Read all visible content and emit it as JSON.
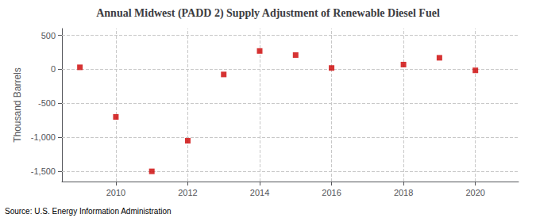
{
  "chart_data": {
    "type": "scatter",
    "title": "Annual Midwest (PADD 2) Supply Adjustment of Renewable Diesel Fuel",
    "ylabel": "Thousand Barrels",
    "annotations": [
      "Source: U.S. Energy Information Administration"
    ],
    "x": [
      2009,
      2010,
      2011,
      2012,
      2013,
      2014,
      2015,
      2016,
      2018,
      2019,
      2020
    ],
    "values": [
      30,
      -700,
      -1500,
      -1050,
      -75,
      270,
      210,
      20,
      70,
      170,
      -15
    ],
    "color": "#cc0000",
    "marker": "square",
    "xlim": [
      2008.5,
      2021.2
    ],
    "ylim": [
      -1650,
      600
    ],
    "xticks": [
      2010,
      2012,
      2014,
      2016,
      2018,
      2020
    ],
    "yticks": [
      {
        "value": -1500,
        "label": "-1,500"
      },
      {
        "value": -1000,
        "label": "-1,000"
      },
      -500,
      0,
      500
    ],
    "grid": true
  }
}
